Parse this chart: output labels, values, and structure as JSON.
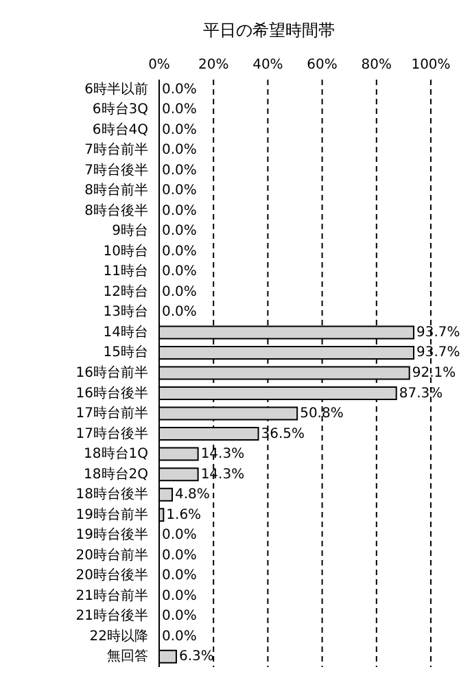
{
  "chart_data": {
    "type": "bar",
    "orientation": "horizontal",
    "title": "平日の希望時間帯",
    "categories": [
      "6時半以前",
      "6時台3Q",
      "6時台4Q",
      "7時台前半",
      "7時台後半",
      "8時台前半",
      "8時台後半",
      "9時台",
      "10時台",
      "11時台",
      "12時台",
      "13時台",
      "14時台",
      "15時台",
      "16時台前半",
      "16時台後半",
      "17時台前半",
      "17時台後半",
      "18時台1Q",
      "18時台2Q",
      "18時台後半",
      "19時台前半",
      "19時台後半",
      "20時台前半",
      "20時台後半",
      "21時台前半",
      "21時台後半",
      "22時以降",
      "無回答"
    ],
    "values": [
      0,
      0,
      0,
      0,
      0,
      0,
      0,
      0,
      0,
      0,
      0,
      0,
      93.7,
      93.7,
      92.1,
      87.3,
      50.8,
      36.5,
      14.3,
      14.3,
      4.8,
      1.6,
      0,
      0,
      0,
      0,
      0,
      0,
      6.3
    ],
    "value_labels": [
      "0.0%",
      "0.0%",
      "0.0%",
      "0.0%",
      "0.0%",
      "0.0%",
      "0.0%",
      "0.0%",
      "0.0%",
      "0.0%",
      "0.0%",
      "0.0%",
      "93.7%",
      "93.7%",
      "92.1%",
      "87.3%",
      "50.8%",
      "36.5%",
      "14.3%",
      "14.3%",
      "4.8%",
      "1.6%",
      "0.0%",
      "0.0%",
      "0.0%",
      "0.0%",
      "0.0%",
      "0.0%",
      "6.3%"
    ],
    "color": "#d4d4d4",
    "xlim": [
      0,
      100
    ],
    "xticks": [
      {
        "value": 0,
        "label": "0%"
      },
      {
        "value": 20,
        "label": "20%"
      },
      {
        "value": 40,
        "label": "40%"
      },
      {
        "value": 60,
        "label": "60%"
      },
      {
        "value": 80,
        "label": "80%"
      },
      {
        "value": 100,
        "label": "100%"
      }
    ],
    "grid": "x"
  }
}
